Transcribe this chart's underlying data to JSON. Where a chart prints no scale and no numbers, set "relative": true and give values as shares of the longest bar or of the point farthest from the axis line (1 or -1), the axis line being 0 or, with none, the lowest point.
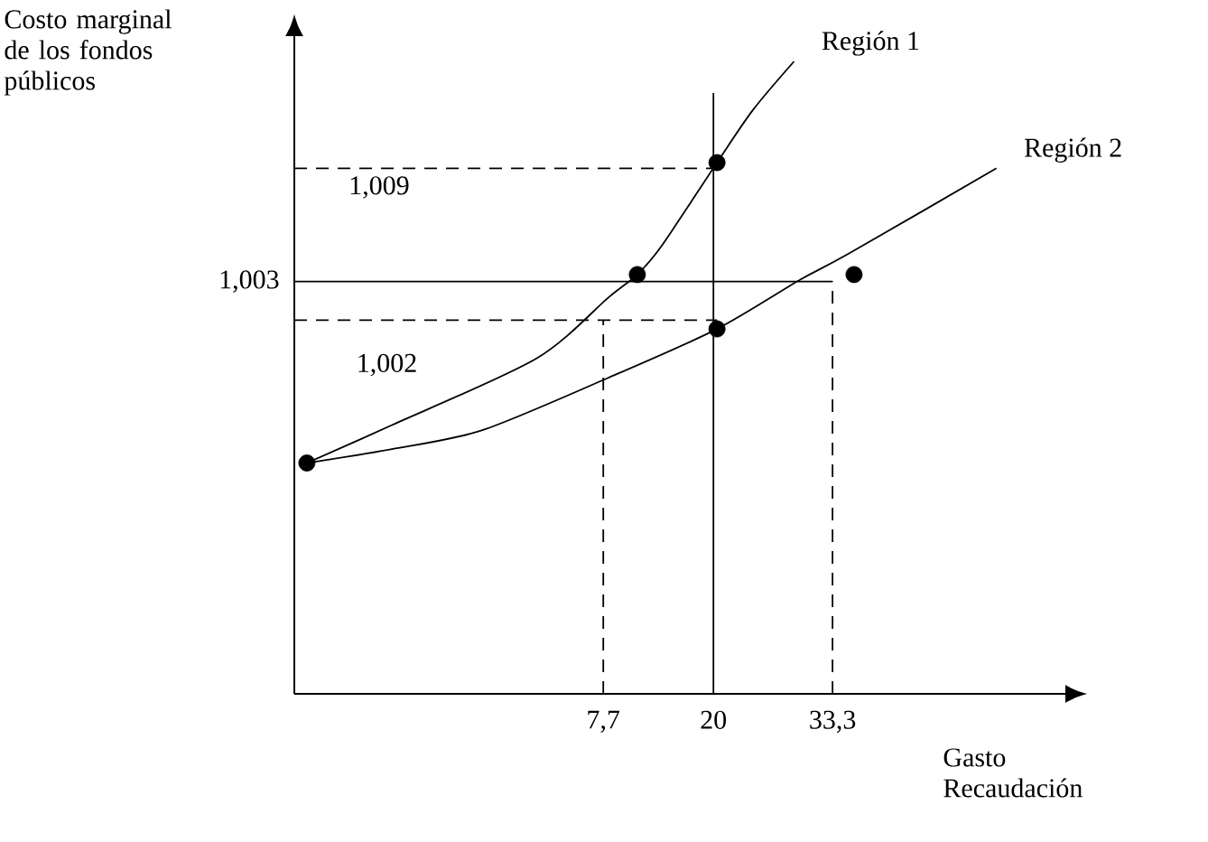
{
  "chart_data": {
    "type": "line",
    "relative": true,
    "xlabel": "Gasto Recaudación",
    "ylabel": "Costo marginal de los fondos públicos",
    "xlim": [
      -26.8,
      59.3
    ],
    "xticks": [
      {
        "value": 7.7,
        "label": "7,7"
      },
      20,
      {
        "value": 33.3,
        "label": "33,3"
      }
    ],
    "tick_labels": "x",
    "legend": false,
    "grid": false,
    "series": [
      {
        "name": "Región 1",
        "color": "#000000",
        "marker": "none",
        "line_style": "solid",
        "x": [
          -25.4,
          -15.9,
          0.2,
          8.3,
          11.5,
          14.3,
          20.4,
          24.4,
          29.0
        ],
        "values": [
          0.365,
          0.425,
          0.53,
          0.627,
          0.663,
          0.71,
          0.84,
          0.923,
          1.0
        ]
      },
      {
        "name": "Región 2",
        "color": "#000000",
        "marker": "none",
        "line_style": "solid",
        "x": [
          -25.4,
          -15.9,
          -5.8,
          8.3,
          20.4,
          29.7,
          35.1,
          51.6
        ],
        "values": [
          0.365,
          0.387,
          0.417,
          0.5,
          0.577,
          0.655,
          0.696,
          0.831
        ]
      },
      {
        "type": "line",
        "color": "#000000",
        "marker": "none",
        "line_style": "dashed",
        "x": [
          -26.8,
          20.4
        ],
        "values": [
          0.831,
          0.831
        ]
      },
      {
        "type": "line",
        "color": "#000000",
        "marker": "none",
        "line_style": "solid",
        "x": [
          -26.8,
          33.3
        ],
        "values": [
          0.652,
          0.652
        ]
      },
      {
        "type": "line",
        "color": "#000000",
        "marker": "none",
        "line_style": "dashed",
        "x": [
          -26.8,
          20.4
        ],
        "values": [
          0.591,
          0.591
        ]
      },
      {
        "type": "line",
        "color": "#000000",
        "marker": "none",
        "line_style": "dashed",
        "x": [
          7.7,
          7.7
        ],
        "values": [
          0,
          0.591
        ]
      },
      {
        "type": "line",
        "color": "#000000",
        "marker": "none",
        "line_style": "dashed",
        "x": [
          33.3,
          33.3
        ],
        "values": [
          0,
          0.652
        ]
      },
      {
        "type": "line",
        "color": "#000000",
        "marker": "none",
        "line_style": "solid",
        "x": [
          20,
          20
        ],
        "values": [
          0,
          0.95
        ]
      },
      {
        "type": "scatter",
        "color": "#000000",
        "marker": "circle",
        "x": [
          -25.4,
          11.5,
          20.4,
          20.4,
          35.7
        ],
        "values": [
          0.365,
          0.663,
          0.84,
          0.577,
          0.663
        ]
      }
    ],
    "annotations": [
      "1,009",
      {
        "text": "1,003",
        "x": -26.8,
        "y": 0.652
      },
      "1,002"
    ]
  }
}
